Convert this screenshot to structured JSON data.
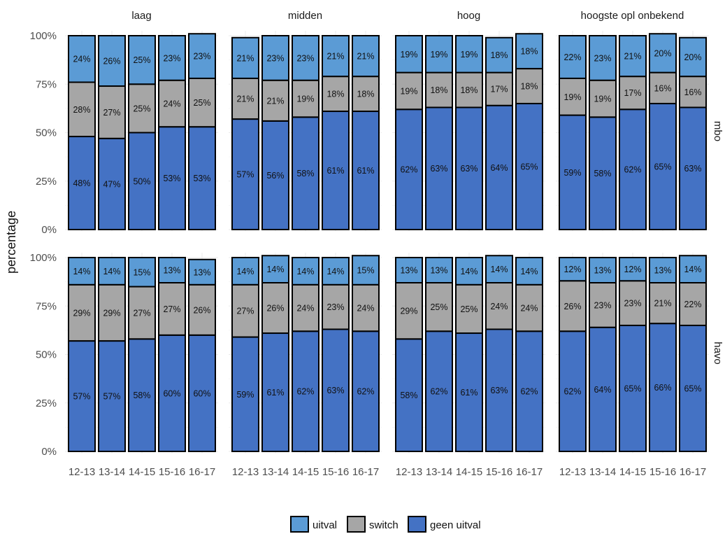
{
  "chart_data": {
    "type": "bar",
    "stacked": true,
    "title": "",
    "xlabel": "",
    "ylabel": "percentage",
    "ylim": [
      0,
      100
    ],
    "y_ticks": [
      "0%",
      "25%",
      "50%",
      "75%",
      "100%"
    ],
    "categories": [
      "12-13",
      "13-14",
      "14-15",
      "15-16",
      "16-17"
    ],
    "columns": [
      "laag",
      "midden",
      "hoog",
      "hoogste opl onbekend"
    ],
    "rows": [
      "mbo",
      "havo"
    ],
    "legend": {
      "position": "bottom",
      "entries": [
        {
          "name": "uitval",
          "color": "#5b9bd5"
        },
        {
          "name": "switch",
          "color": "#a6a6a6"
        },
        {
          "name": "geen uitval",
          "color": "#4472c4"
        }
      ]
    },
    "grid": true,
    "panels": [
      {
        "row": "mbo",
        "column": "laag",
        "series": [
          {
            "name": "geen uitval",
            "values": [
              48,
              47,
              50,
              53,
              53
            ]
          },
          {
            "name": "switch",
            "values": [
              28,
              27,
              25,
              24,
              25
            ]
          },
          {
            "name": "uitval",
            "values": [
              24,
              26,
              25,
              23,
              23
            ]
          }
        ]
      },
      {
        "row": "mbo",
        "column": "midden",
        "series": [
          {
            "name": "geen uitval",
            "values": [
              57,
              56,
              58,
              61,
              61
            ]
          },
          {
            "name": "switch",
            "values": [
              21,
              21,
              19,
              18,
              18
            ]
          },
          {
            "name": "uitval",
            "values": [
              21,
              23,
              23,
              21,
              21
            ]
          }
        ]
      },
      {
        "row": "mbo",
        "column": "hoog",
        "series": [
          {
            "name": "geen uitval",
            "values": [
              62,
              63,
              63,
              64,
              65
            ]
          },
          {
            "name": "switch",
            "values": [
              19,
              18,
              18,
              17,
              18
            ]
          },
          {
            "name": "uitval",
            "values": [
              19,
              19,
              19,
              18,
              18
            ]
          }
        ]
      },
      {
        "row": "mbo",
        "column": "hoogste opl onbekend",
        "series": [
          {
            "name": "geen uitval",
            "values": [
              59,
              58,
              62,
              65,
              63
            ]
          },
          {
            "name": "switch",
            "values": [
              19,
              19,
              17,
              16,
              16
            ]
          },
          {
            "name": "uitval",
            "values": [
              22,
              23,
              21,
              20,
              20
            ]
          }
        ]
      },
      {
        "row": "havo",
        "column": "laag",
        "series": [
          {
            "name": "geen uitval",
            "values": [
              57,
              57,
              58,
              60,
              60
            ]
          },
          {
            "name": "switch",
            "values": [
              29,
              29,
              27,
              27,
              26
            ]
          },
          {
            "name": "uitval",
            "values": [
              14,
              14,
              15,
              13,
              13
            ]
          }
        ]
      },
      {
        "row": "havo",
        "column": "midden",
        "series": [
          {
            "name": "geen uitval",
            "values": [
              59,
              61,
              62,
              63,
              62
            ]
          },
          {
            "name": "switch",
            "values": [
              27,
              26,
              24,
              23,
              24
            ]
          },
          {
            "name": "uitval",
            "values": [
              14,
              14,
              14,
              14,
              15
            ]
          }
        ]
      },
      {
        "row": "havo",
        "column": "hoog",
        "series": [
          {
            "name": "geen uitval",
            "values": [
              58,
              62,
              61,
              63,
              62
            ]
          },
          {
            "name": "switch",
            "values": [
              29,
              25,
              25,
              24,
              24
            ]
          },
          {
            "name": "uitval",
            "values": [
              13,
              13,
              14,
              14,
              14
            ]
          }
        ]
      },
      {
        "row": "havo",
        "column": "hoogste opl onbekend",
        "series": [
          {
            "name": "geen uitval",
            "values": [
              62,
              64,
              65,
              66,
              65
            ]
          },
          {
            "name": "switch",
            "values": [
              26,
              23,
              23,
              21,
              22
            ]
          },
          {
            "name": "uitval",
            "values": [
              12,
              13,
              12,
              13,
              14
            ]
          }
        ]
      }
    ]
  }
}
